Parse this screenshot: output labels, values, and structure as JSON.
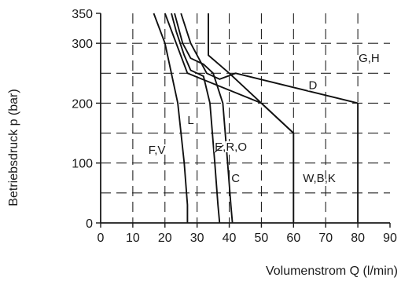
{
  "chart_data": {
    "type": "line",
    "title": "",
    "xlabel": "Volumenstrom Q (l/min)",
    "ylabel": "Betriebsdruck p (bar)",
    "xlim": [
      0,
      90
    ],
    "ylim": [
      0,
      350
    ],
    "xticks": [
      0,
      10,
      20,
      30,
      40,
      50,
      60,
      70,
      80,
      90
    ],
    "yticks": [
      0,
      100,
      200,
      300,
      350
    ],
    "grid": true,
    "series": [
      {
        "name": "F,V",
        "x": [
          16.5,
          20,
          24,
          26,
          27,
          27
        ],
        "y": [
          350,
          300,
          200,
          100,
          30,
          0
        ]
      },
      {
        "name": "L",
        "x": [
          22,
          23.5,
          26,
          28,
          30,
          32,
          34,
          35.5,
          36.5,
          37
        ],
        "y": [
          350,
          320,
          280,
          255,
          250,
          245,
          200,
          100,
          30,
          0
        ]
      },
      {
        "name": "E,R,O",
        "x": [
          23,
          25.5,
          28,
          32,
          35,
          38,
          39.5,
          40.5,
          41
        ],
        "y": [
          350,
          300,
          275,
          265,
          250,
          200,
          100,
          30,
          0
        ]
      },
      {
        "name": "D",
        "x": [
          25,
          28,
          33,
          37,
          42,
          80
        ],
        "y": [
          350,
          300,
          250,
          240,
          250,
          200
        ]
      },
      {
        "name": "C",
        "x": [
          20,
          27,
          50,
          60,
          60
        ],
        "y": [
          350,
          250,
          200,
          150,
          0
        ]
      },
      {
        "name": "W,B,K",
        "x": [
          33.5,
          33.5,
          40,
          50,
          60
        ],
        "y": [
          350,
          280,
          250,
          200,
          150
        ]
      },
      {
        "name": "G,H",
        "x": [
          80,
          80
        ],
        "y": [
          200,
          0
        ]
      }
    ],
    "curve_labels": [
      {
        "text": "G,H",
        "x": 83.5,
        "y": 275
      },
      {
        "text": "D",
        "x": 66,
        "y": 230
      },
      {
        "text": "L",
        "x": 28,
        "y": 172
      },
      {
        "text": "F,V",
        "x": 17.5,
        "y": 122
      },
      {
        "text": "E,R,O",
        "x": 40.5,
        "y": 127
      },
      {
        "text": "C",
        "x": 42,
        "y": 75
      },
      {
        "text": "W,B,K",
        "x": 68,
        "y": 75
      }
    ]
  }
}
